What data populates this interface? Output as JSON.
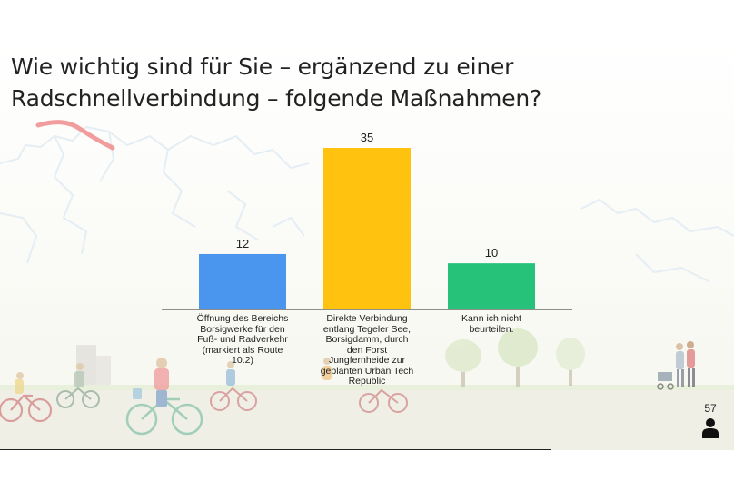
{
  "title": "Wie wichtig sind für Sie – ergänzend zu einer Radschnellverbindung – folgende Maßnahmen?",
  "respondents": "57",
  "chart_data": {
    "type": "bar",
    "categories": [
      "Öffnung des Bereichs Borsigwerke für den Fuß- und Radverkehr (markiert als Route 10.2)",
      "Direkte Verbindung entlang Tegeler See, Borsigdamm, durch den Forst Jungfernheide zur geplanten Urban Tech Republic",
      "Kann ich nicht beurteilen."
    ],
    "values": [
      12,
      35,
      10
    ],
    "data_labels": [
      "12",
      "35",
      "10"
    ],
    "colors": [
      "#4a96ee",
      "#ffc20e",
      "#26c27a"
    ],
    "ylim": [
      0,
      35
    ],
    "grid": false,
    "legend": "none"
  }
}
